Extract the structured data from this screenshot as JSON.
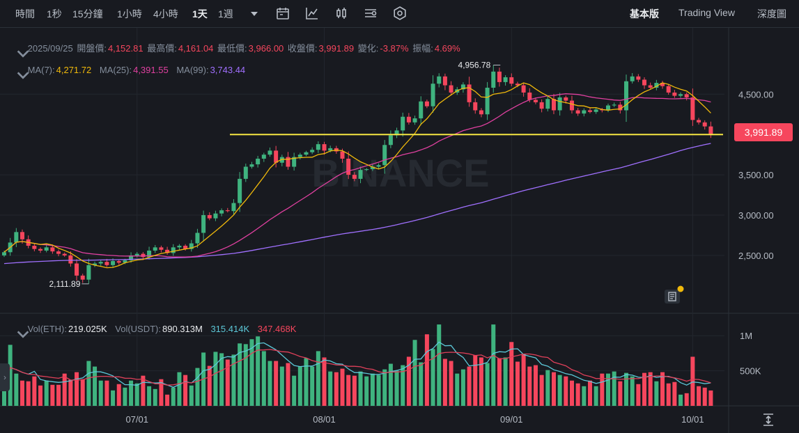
{
  "toolbar": {
    "time_label": "時間",
    "intervals": [
      "1秒",
      "15分鐘",
      "1小時",
      "4小時",
      "1天",
      "1週"
    ],
    "active_interval": "1天",
    "views": [
      "基本版",
      "Trading View",
      "深度圖"
    ],
    "active_view": "基本版"
  },
  "ohlc_legend": {
    "date": "2025/09/25",
    "open_label": "開盤價:",
    "open": "4,152.81",
    "high_label": "最高價:",
    "high": "4,161.04",
    "low_label": "最低價:",
    "low": "3,966.00",
    "close_label": "收盤價:",
    "close": "3,991.89",
    "change_label": "變化:",
    "change": "-3.87%",
    "amp_label": "振幅:",
    "amp": "4.69%"
  },
  "ma_legend": {
    "ma7_label": "MA(7):",
    "ma7": "4,271.72",
    "ma25_label": "MA(25):",
    "ma25": "4,391.55",
    "ma99_label": "MA(99):",
    "ma99": "3,743.44"
  },
  "vol_legend": {
    "eth_label": "Vol(ETH):",
    "eth": "219.025K",
    "usdt_label": "Vol(USDT):",
    "usdt": "890.313M",
    "ma1": "315.414K",
    "ma2": "347.468K"
  },
  "last_price_tag": "3,991.89",
  "high_marker": "4,956.78",
  "low_marker": "2,111.89",
  "watermark": "BINANCE",
  "colors": {
    "up": "#3fb37f",
    "down": "#f6465d",
    "ma7": "#f0b90b",
    "ma25": "#e040a0",
    "ma99": "#a070ff",
    "vma1": "#5cc8d8",
    "vma2": "#e0405a",
    "hline": "#f5e642"
  },
  "chart_data": {
    "type": "candlestick",
    "x_ticks": [
      "07/01",
      "08/01",
      "09/01",
      "10/01"
    ],
    "price_ticks": [
      2500,
      3000,
      3500,
      4500
    ],
    "price_tick_labels": [
      "2,500.00",
      "3,000.00",
      "3,500.00",
      "4,500.00"
    ],
    "volume_ticks": [
      500000,
      1000000
    ],
    "volume_tick_labels": [
      "500K",
      "1M"
    ],
    "horizontal_line": 4000,
    "start_date": "2025-06-09",
    "closes": [
      2540,
      2660,
      2790,
      2700,
      2620,
      2580,
      2560,
      2600,
      2550,
      2520,
      2500,
      2400,
      2250,
      2200,
      2380,
      2400,
      2420,
      2380,
      2430,
      2410,
      2440,
      2500,
      2520,
      2480,
      2560,
      2600,
      2570,
      2530,
      2600,
      2620,
      2580,
      2650,
      2780,
      3000,
      2960,
      3020,
      3060,
      3050,
      3150,
      3450,
      3600,
      3630,
      3700,
      3750,
      3800,
      3650,
      3720,
      3600,
      3720,
      3750,
      3780,
      3810,
      3880,
      3800,
      3830,
      3790,
      3700,
      3500,
      3450,
      3560,
      3570,
      3600,
      3620,
      3870,
      3990,
      4050,
      4220,
      4150,
      4200,
      4410,
      4350,
      4630,
      4720,
      4610,
      4520,
      4560,
      4620,
      4400,
      4300,
      4250,
      4580,
      4780,
      4650,
      4710,
      4630,
      4610,
      4520,
      4430,
      4400,
      4320,
      4440,
      4300,
      4460,
      4420,
      4300,
      4260,
      4300,
      4280,
      4310,
      4300,
      4360,
      4370,
      4300,
      4660,
      4720,
      4680,
      4610,
      4580,
      4640,
      4600,
      4520,
      4480,
      4500,
      4460,
      4180,
      4150,
      4100,
      3992
    ],
    "volumes": [
      220000,
      870000,
      460000,
      360000,
      350000,
      420000,
      290000,
      360000,
      300000,
      300000,
      460000,
      370000,
      480000,
      380000,
      640000,
      560000,
      360000,
      360000,
      220000,
      310000,
      260000,
      360000,
      320000,
      430000,
      280000,
      240000,
      380000,
      160000,
      260000,
      480000,
      440000,
      290000,
      540000,
      760000,
      570000,
      770000,
      750000,
      660000,
      730000,
      890000,
      880000,
      950000,
      990000,
      780000,
      640000,
      640000,
      560000,
      610000,
      430000,
      560000,
      680000,
      560000,
      780000,
      690000,
      490000,
      480000,
      530000,
      440000,
      430000,
      490000,
      420000,
      460000,
      440000,
      520000,
      600000,
      500000,
      580000,
      700000,
      940000,
      620000,
      1020000,
      810000,
      1160000,
      670000,
      640000,
      460000,
      520000,
      560000,
      720000,
      690000,
      610000,
      1160000,
      680000,
      690000,
      910000,
      630000,
      740000,
      560000,
      580000,
      440000,
      510000,
      480000,
      440000,
      420000,
      360000,
      320000,
      280000,
      360000,
      280000,
      460000,
      460000,
      490000,
      350000,
      470000,
      420000,
      310000,
      470000,
      480000,
      350000,
      480000,
      320000,
      340000,
      160000,
      180000,
      700000,
      280000,
      260000,
      219025
    ]
  }
}
